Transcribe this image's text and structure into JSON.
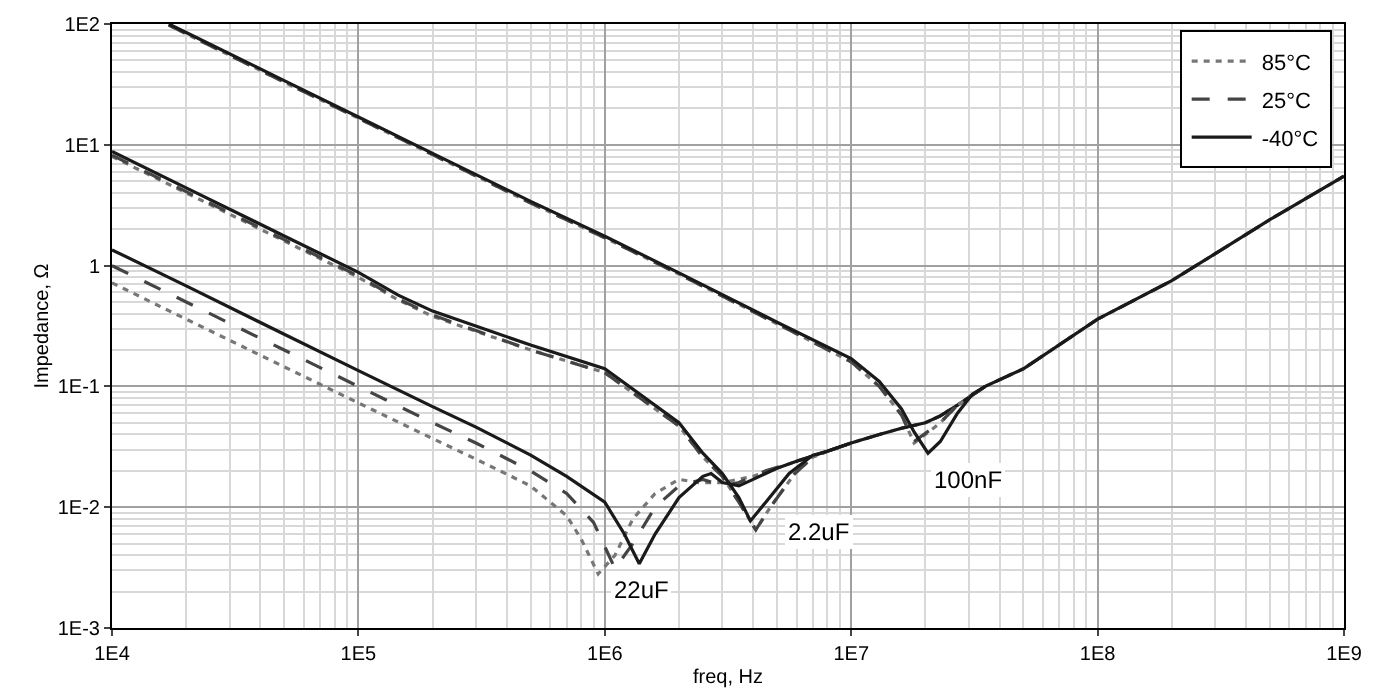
{
  "chart_data": {
    "type": "line",
    "xlabel": "freq, Hz",
    "ylabel": "Impedance, Ω",
    "log": "xy",
    "grid": true,
    "legend": "top right",
    "xlim": [
      10000,
      1000000000
    ],
    "ylim": [
      0.001,
      100
    ],
    "xticks": [
      {
        "value": 10000,
        "label": "1E4"
      },
      {
        "value": 100000,
        "label": "1E5"
      },
      {
        "value": 1000000,
        "label": "1E6"
      },
      {
        "value": 10000000,
        "label": "1E7"
      },
      {
        "value": 100000000,
        "label": "1E8"
      },
      {
        "value": 1000000000,
        "label": "1E9"
      }
    ],
    "yticks": [
      {
        "value": 0.001,
        "label": "1E-3"
      },
      {
        "value": 0.01,
        "label": "1E-2"
      },
      {
        "value": 0.1,
        "label": "1E-1"
      },
      1,
      {
        "value": 10,
        "label": "1E1"
      },
      {
        "value": 100,
        "label": "1E2"
      }
    ],
    "series": [
      {
        "name": "85°C",
        "color": "#777777",
        "line_style": "dotted",
        "x": [
          10000,
          20000,
          50000,
          100000,
          200000,
          300000,
          500000,
          700000,
          800000,
          940000,
          1100000,
          1300000,
          1600000,
          2000000,
          2400000,
          3000000,
          4000000,
          5000000,
          6000000,
          8000000,
          10000000,
          13000000,
          16000000,
          20000000,
          23000000,
          27000000,
          35000000,
          50000000,
          100000000,
          200000000,
          500000000,
          1000000000
        ],
        "values": [
          0.72,
          0.36,
          0.145,
          0.073,
          0.037,
          0.025,
          0.015,
          0.0085,
          0.0055,
          0.0028,
          0.004,
          0.008,
          0.013,
          0.017,
          0.016,
          0.016,
          0.018,
          0.021,
          0.024,
          0.029,
          0.034,
          0.04,
          0.045,
          0.05,
          0.057,
          0.07,
          0.1,
          0.14,
          0.36,
          0.75,
          2.4,
          5.5
        ]
      },
      {
        "name": "25°C",
        "color": "#444444",
        "line_style": "dashed",
        "x": [
          10000,
          20000,
          50000,
          100000,
          200000,
          300000,
          500000,
          700000,
          900000,
          1100000,
          1300000,
          1600000,
          2000000,
          2500000,
          3000000,
          3500000,
          4500000,
          6000000,
          8000000,
          10000000,
          13000000,
          16000000,
          20000000,
          23000000,
          27000000,
          35000000,
          50000000,
          100000000,
          200000000,
          500000000,
          1000000000
        ],
        "values": [
          1.0,
          0.5,
          0.2,
          0.1,
          0.05,
          0.034,
          0.02,
          0.013,
          0.0075,
          0.0031,
          0.005,
          0.01,
          0.015,
          0.017,
          0.015,
          0.016,
          0.02,
          0.024,
          0.029,
          0.034,
          0.04,
          0.045,
          0.05,
          0.057,
          0.07,
          0.1,
          0.14,
          0.36,
          0.75,
          2.4,
          5.5
        ]
      },
      {
        "name": "-40°C",
        "color": "#1a1a1a",
        "line_style": "solid",
        "x": [
          10000,
          20000,
          50000,
          100000,
          200000,
          300000,
          500000,
          700000,
          1000000,
          1200000,
          1380000,
          1600000,
          2000000,
          2500000,
          2700000,
          3000000,
          3500000,
          4000000,
          5000000,
          6000000,
          8000000,
          10000000,
          13000000,
          16000000,
          20000000,
          23000000,
          27000000,
          35000000,
          50000000,
          100000000,
          200000000,
          500000000,
          1000000000
        ],
        "values": [
          1.35,
          0.68,
          0.27,
          0.135,
          0.068,
          0.046,
          0.027,
          0.018,
          0.011,
          0.006,
          0.0034,
          0.006,
          0.012,
          0.018,
          0.019,
          0.016,
          0.015,
          0.017,
          0.021,
          0.024,
          0.029,
          0.034,
          0.04,
          0.045,
          0.05,
          0.057,
          0.07,
          0.1,
          0.14,
          0.36,
          0.75,
          2.4,
          5.5
        ]
      },
      {
        "color": "#777777",
        "line_style": "dotted",
        "x": [
          10000,
          20000,
          50000,
          100000,
          145000,
          200000,
          500000,
          1000000,
          2000000,
          2500000,
          3000000,
          3500000,
          4100000,
          4700000,
          5900000,
          7000000,
          8000000,
          10000000
        ],
        "values": [
          8.0,
          4.0,
          1.6,
          0.8,
          0.52,
          0.38,
          0.2,
          0.13,
          0.047,
          0.026,
          0.018,
          0.011,
          0.0065,
          0.01,
          0.019,
          0.026,
          0.029,
          0.034
        ]
      },
      {
        "color": "#444444",
        "line_style": "dashed",
        "x": [
          10000,
          20000,
          50000,
          100000,
          145000,
          200000,
          500000,
          1000000,
          2000000,
          2500000,
          3000000,
          3500000,
          4100000,
          4700000,
          5900000,
          7000000,
          8000000,
          10000000
        ],
        "values": [
          8.2,
          4.1,
          1.64,
          0.82,
          0.53,
          0.39,
          0.2,
          0.13,
          0.047,
          0.026,
          0.018,
          0.011,
          0.0065,
          0.01,
          0.019,
          0.026,
          0.029,
          0.034
        ]
      },
      {
        "color": "#1a1a1a",
        "line_style": "solid",
        "x": [
          10000,
          20000,
          50000,
          100000,
          145000,
          200000,
          500000,
          1000000,
          2000000,
          2500000,
          3000000,
          3500000,
          3900000,
          4500000,
          5600000,
          7000000,
          8000000,
          10000000
        ],
        "values": [
          8.8,
          4.4,
          1.76,
          0.88,
          0.57,
          0.42,
          0.22,
          0.14,
          0.05,
          0.028,
          0.019,
          0.012,
          0.0077,
          0.011,
          0.019,
          0.027,
          0.029,
          0.034
        ]
      },
      {
        "color": "#777777",
        "line_style": "dotted",
        "x": [
          17000,
          20000,
          50000,
          100000,
          200000,
          500000,
          1000000,
          2000000,
          5000000,
          10000000,
          13000000,
          16000000,
          18000000,
          20000000,
          23000000,
          27000000,
          35000000
        ],
        "values": [
          98,
          83,
          33,
          16.6,
          8.3,
          3.3,
          1.7,
          0.85,
          0.33,
          0.16,
          0.1,
          0.058,
          0.034,
          0.04,
          0.05,
          0.07,
          0.1
        ]
      },
      {
        "color": "#444444",
        "line_style": "dashed",
        "x": [
          17000,
          20000,
          50000,
          100000,
          200000,
          500000,
          1000000,
          2000000,
          5000000,
          10000000,
          13000000,
          16000000,
          18000000,
          20000000,
          23000000,
          27000000,
          35000000
        ],
        "values": [
          98,
          83,
          33,
          16.6,
          8.3,
          3.3,
          1.7,
          0.85,
          0.33,
          0.16,
          0.1,
          0.058,
          0.035,
          0.041,
          0.05,
          0.07,
          0.1
        ]
      },
      {
        "color": "#1a1a1a",
        "line_style": "solid",
        "x": [
          17000,
          20000,
          50000,
          100000,
          200000,
          500000,
          1000000,
          2000000,
          5000000,
          10000000,
          13000000,
          16000000,
          18000000,
          20500000,
          23000000,
          27000000,
          31000000,
          35000000
        ],
        "values": [
          100,
          85,
          34,
          17,
          8.5,
          3.4,
          1.75,
          0.87,
          0.34,
          0.17,
          0.11,
          0.065,
          0.042,
          0.028,
          0.035,
          0.06,
          0.086,
          0.1
        ]
      }
    ],
    "annotations": [
      {
        "text": "22uF",
        "x": 1400000,
        "y": 0.0021
      },
      {
        "text": "2.2uF",
        "x": 7400000,
        "y": 0.0062
      },
      {
        "text": "100nF",
        "x": 30000000,
        "y": 0.017
      }
    ]
  }
}
